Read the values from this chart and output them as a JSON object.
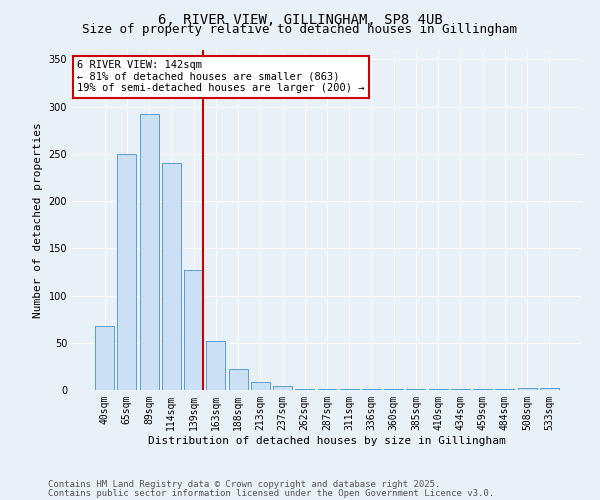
{
  "title1": "6, RIVER VIEW, GILLINGHAM, SP8 4UB",
  "title2": "Size of property relative to detached houses in Gillingham",
  "xlabel": "Distribution of detached houses by size in Gillingham",
  "ylabel": "Number of detached properties",
  "categories": [
    "40sqm",
    "65sqm",
    "89sqm",
    "114sqm",
    "139sqm",
    "163sqm",
    "188sqm",
    "213sqm",
    "237sqm",
    "262sqm",
    "287sqm",
    "311sqm",
    "336sqm",
    "360sqm",
    "385sqm",
    "410sqm",
    "434sqm",
    "459sqm",
    "484sqm",
    "508sqm",
    "533sqm"
  ],
  "values": [
    68,
    250,
    292,
    240,
    127,
    52,
    22,
    9,
    4,
    1,
    1,
    1,
    1,
    1,
    1,
    1,
    1,
    1,
    1,
    2,
    2
  ],
  "bar_color": "#cce0f5",
  "bar_edge_color": "#5b9bd5",
  "vline_x_index": 4,
  "vline_color": "#cc0000",
  "annotation_text": "6 RIVER VIEW: 142sqm\n← 81% of detached houses are smaller (863)\n19% of semi-detached houses are larger (200) →",
  "annotation_box_color": "#ffffff",
  "annotation_box_edge_color": "#cc0000",
  "ylim": [
    0,
    360
  ],
  "yticks": [
    0,
    50,
    100,
    150,
    200,
    250,
    300,
    350
  ],
  "footer1": "Contains HM Land Registry data © Crown copyright and database right 2025.",
  "footer2": "Contains public sector information licensed under the Open Government Licence v3.0.",
  "bg_color": "#e8f0f8",
  "plot_bg_color": "#e8f0f8",
  "title1_fontsize": 10,
  "title2_fontsize": 9,
  "annotation_fontsize": 7.5,
  "footer_fontsize": 6.5,
  "tick_fontsize": 7,
  "ylabel_fontsize": 8,
  "xlabel_fontsize": 8
}
